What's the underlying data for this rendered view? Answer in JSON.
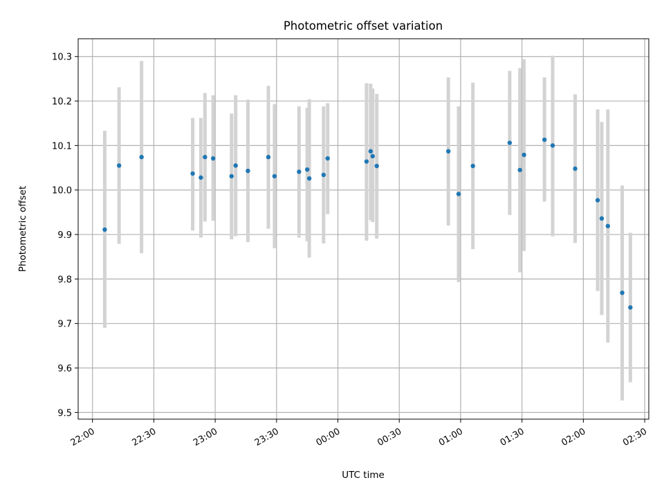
{
  "chart_data": {
    "type": "scatter",
    "title": "Photometric offset variation",
    "xlabel": "UTC time",
    "ylabel": "Photometric offset",
    "xlim": [
      "21:53",
      "02:32"
    ],
    "ylim": [
      9.485,
      10.34
    ],
    "grid": true,
    "x_ticks": [
      "22:00",
      "22:30",
      "23:00",
      "23:30",
      "00:00",
      "00:30",
      "01:00",
      "01:30",
      "02:00",
      "02:30"
    ],
    "y_ticks": [
      9.5,
      9.6,
      9.7,
      9.8,
      9.9,
      10.0,
      10.1,
      10.2,
      10.3
    ],
    "y_tick_labels": [
      "9.5",
      "9.6",
      "9.7",
      "9.8",
      "9.9",
      "10.0",
      "10.1",
      "10.2",
      "10.3"
    ],
    "colors": {
      "marker": "#1f77b4",
      "errorbar": "#d3d3d3",
      "grid": "#b0b0b0"
    },
    "points": [
      {
        "x": "22:06",
        "y": 9.911,
        "yerr_low": 9.69,
        "yerr_high": 10.133
      },
      {
        "x": "22:13",
        "y": 10.055,
        "yerr_low": 9.879,
        "yerr_high": 10.231
      },
      {
        "x": "22:24",
        "y": 10.074,
        "yerr_low": 9.858,
        "yerr_high": 10.29
      },
      {
        "x": "22:49",
        "y": 10.037,
        "yerr_low": 9.909,
        "yerr_high": 10.162
      },
      {
        "x": "22:53",
        "y": 10.028,
        "yerr_low": 9.893,
        "yerr_high": 10.162
      },
      {
        "x": "22:55",
        "y": 10.074,
        "yerr_low": 9.929,
        "yerr_high": 10.218
      },
      {
        "x": "22:59",
        "y": 10.071,
        "yerr_low": 9.931,
        "yerr_high": 10.213
      },
      {
        "x": "23:08",
        "y": 10.031,
        "yerr_low": 9.889,
        "yerr_high": 10.172
      },
      {
        "x": "23:10",
        "y": 10.055,
        "yerr_low": 9.896,
        "yerr_high": 10.213
      },
      {
        "x": "23:16",
        "y": 10.043,
        "yerr_low": 9.883,
        "yerr_high": 10.203
      },
      {
        "x": "23:26",
        "y": 10.074,
        "yerr_low": 9.913,
        "yerr_high": 10.234
      },
      {
        "x": "23:29",
        "y": 10.031,
        "yerr_low": 9.869,
        "yerr_high": 10.193
      },
      {
        "x": "23:41",
        "y": 10.041,
        "yerr_low": 9.893,
        "yerr_high": 10.188
      },
      {
        "x": "23:45",
        "y": 10.046,
        "yerr_low": 9.885,
        "yerr_high": 10.185
      },
      {
        "x": "23:46",
        "y": 10.026,
        "yerr_low": 9.848,
        "yerr_high": 10.204
      },
      {
        "x": "23:53",
        "y": 10.034,
        "yerr_low": 9.88,
        "yerr_high": 10.188
      },
      {
        "x": "23:55",
        "y": 10.071,
        "yerr_low": 9.946,
        "yerr_high": 10.195
      },
      {
        "x": "00:14",
        "y": 10.064,
        "yerr_low": 9.886,
        "yerr_high": 10.24
      },
      {
        "x": "00:16",
        "y": 10.087,
        "yerr_low": 9.932,
        "yerr_high": 10.239
      },
      {
        "x": "00:17",
        "y": 10.076,
        "yerr_low": 9.928,
        "yerr_high": 10.228
      },
      {
        "x": "00:19",
        "y": 10.054,
        "yerr_low": 9.891,
        "yerr_high": 10.216
      },
      {
        "x": "00:54",
        "y": 10.087,
        "yerr_low": 9.92,
        "yerr_high": 10.253
      },
      {
        "x": "00:59",
        "y": 9.991,
        "yerr_low": 9.793,
        "yerr_high": 10.188
      },
      {
        "x": "01:06",
        "y": 10.054,
        "yerr_low": 9.867,
        "yerr_high": 10.241
      },
      {
        "x": "01:24",
        "y": 10.106,
        "yerr_low": 9.944,
        "yerr_high": 10.268
      },
      {
        "x": "01:29",
        "y": 10.045,
        "yerr_low": 9.815,
        "yerr_high": 10.274
      },
      {
        "x": "01:31",
        "y": 10.079,
        "yerr_low": 9.863,
        "yerr_high": 10.294
      },
      {
        "x": "01:41",
        "y": 10.113,
        "yerr_low": 9.974,
        "yerr_high": 10.253
      },
      {
        "x": "01:45",
        "y": 10.1,
        "yerr_low": 9.896,
        "yerr_high": 10.302
      },
      {
        "x": "01:56",
        "y": 10.048,
        "yerr_low": 9.881,
        "yerr_high": 10.215
      },
      {
        "x": "02:07",
        "y": 9.977,
        "yerr_low": 9.773,
        "yerr_high": 10.181
      },
      {
        "x": "02:09",
        "y": 9.936,
        "yerr_low": 9.719,
        "yerr_high": 10.153
      },
      {
        "x": "02:12",
        "y": 9.919,
        "yerr_low": 9.657,
        "yerr_high": 10.181
      },
      {
        "x": "02:19",
        "y": 9.769,
        "yerr_low": 9.527,
        "yerr_high": 10.01
      },
      {
        "x": "02:23",
        "y": 9.736,
        "yerr_low": 9.568,
        "yerr_high": 9.904
      }
    ]
  }
}
